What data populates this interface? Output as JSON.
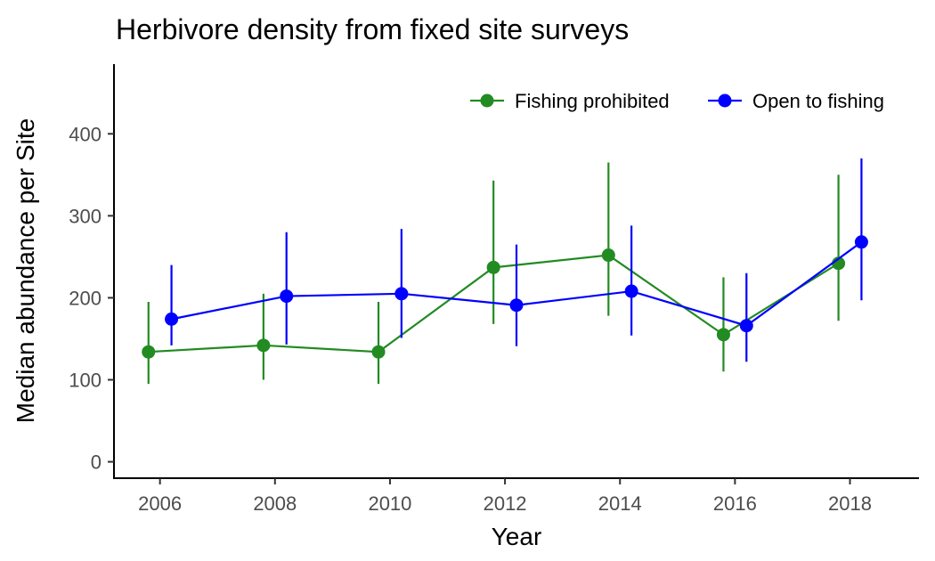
{
  "chart_data": {
    "type": "line",
    "title": "Herbivore density from fixed site surveys",
    "xlabel": "Year",
    "ylabel": "Median abundance per Site",
    "x": [
      2006,
      2008,
      2010,
      2012,
      2014,
      2016,
      2018
    ],
    "xlim": [
      2005.2,
      2019.2
    ],
    "ylim": [
      -20,
      485
    ],
    "yticks": [
      0,
      100,
      200,
      300,
      400
    ],
    "grid": false,
    "legend_position": "top-right",
    "series": [
      {
        "name": "Fishing prohibited",
        "color": "#228B22",
        "values": [
          134,
          142,
          134,
          237,
          252,
          155,
          242
        ],
        "error_low": [
          95,
          100,
          95,
          168,
          178,
          110,
          172
        ],
        "error_high": [
          195,
          205,
          195,
          343,
          365,
          225,
          350
        ]
      },
      {
        "name": "Open to fishing",
        "color": "#0000FF",
        "values": [
          174,
          202,
          205,
          191,
          208,
          166,
          268
        ],
        "error_low": [
          142,
          143,
          151,
          141,
          154,
          122,
          197
        ],
        "error_high": [
          240,
          280,
          284,
          265,
          288,
          230,
          370
        ]
      }
    ]
  }
}
